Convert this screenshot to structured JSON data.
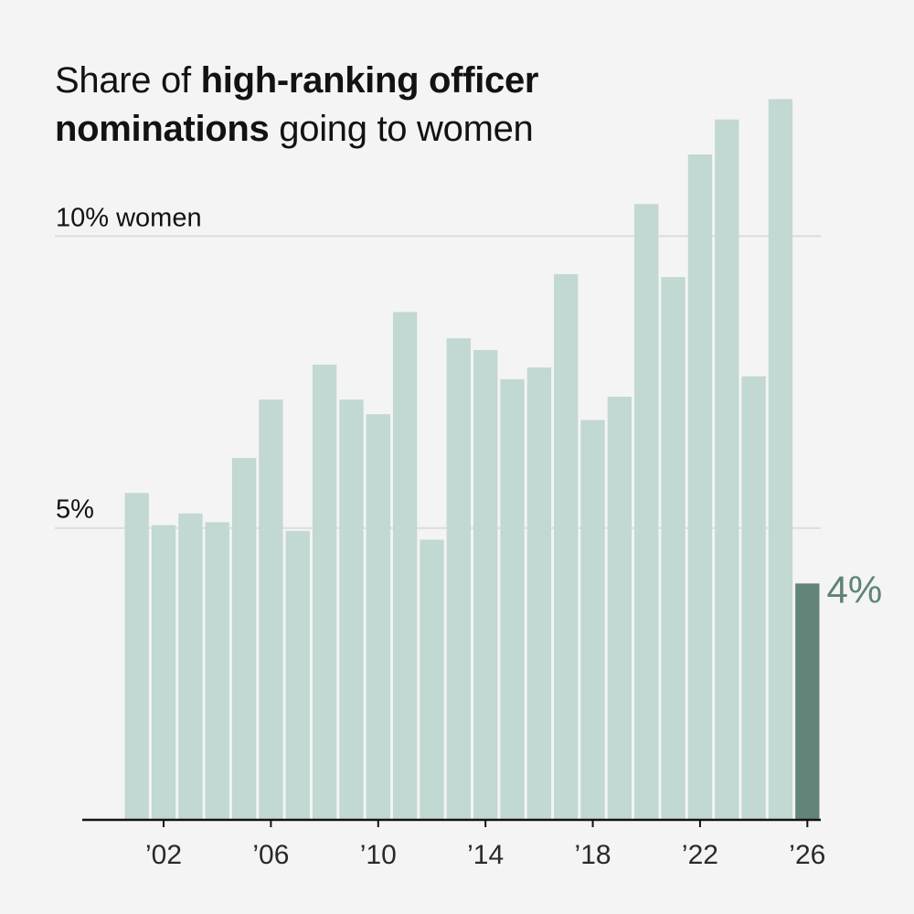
{
  "title": {
    "prefix": "Share of ",
    "bold": "high-ranking officer nominations",
    "suffix": " going to women"
  },
  "chart_data": {
    "type": "bar",
    "title": "Share of high-ranking officer nominations going to women",
    "xlabel": "",
    "ylabel": "",
    "x": [
      2001,
      2002,
      2003,
      2004,
      2005,
      2006,
      2007,
      2008,
      2009,
      2010,
      2011,
      2012,
      2013,
      2014,
      2015,
      2016,
      2017,
      2018,
      2019,
      2020,
      2021,
      2022,
      2023,
      2024,
      2025,
      2026
    ],
    "values": [
      5.6,
      5.05,
      5.25,
      5.1,
      6.2,
      7.2,
      4.95,
      7.8,
      7.2,
      6.95,
      8.7,
      4.8,
      8.25,
      8.05,
      7.55,
      7.75,
      9.35,
      6.85,
      7.25,
      10.55,
      9.3,
      11.4,
      12.0,
      7.6,
      12.35,
      4.05
    ],
    "ylim": [
      0,
      12.7
    ],
    "gridlines": [
      {
        "value": 5,
        "label": "5%"
      },
      {
        "value": 10,
        "label": "10% women"
      }
    ],
    "x_ticks": [
      {
        "year": 2002,
        "label": "’02"
      },
      {
        "year": 2006,
        "label": "’06"
      },
      {
        "year": 2010,
        "label": "’10"
      },
      {
        "year": 2014,
        "label": "’14"
      },
      {
        "year": 2018,
        "label": "’18"
      },
      {
        "year": 2022,
        "label": "’22"
      },
      {
        "year": 2026,
        "label": "’26"
      }
    ],
    "highlight": {
      "year": 2026,
      "label": "4%"
    },
    "colors": {
      "bar": "#c2d8d2",
      "highlight": "#638479",
      "highlight_label": "#5f8378",
      "gridline": "#dcdcdc",
      "background": "#f4f4f4"
    },
    "grid": true,
    "legend": "none"
  }
}
